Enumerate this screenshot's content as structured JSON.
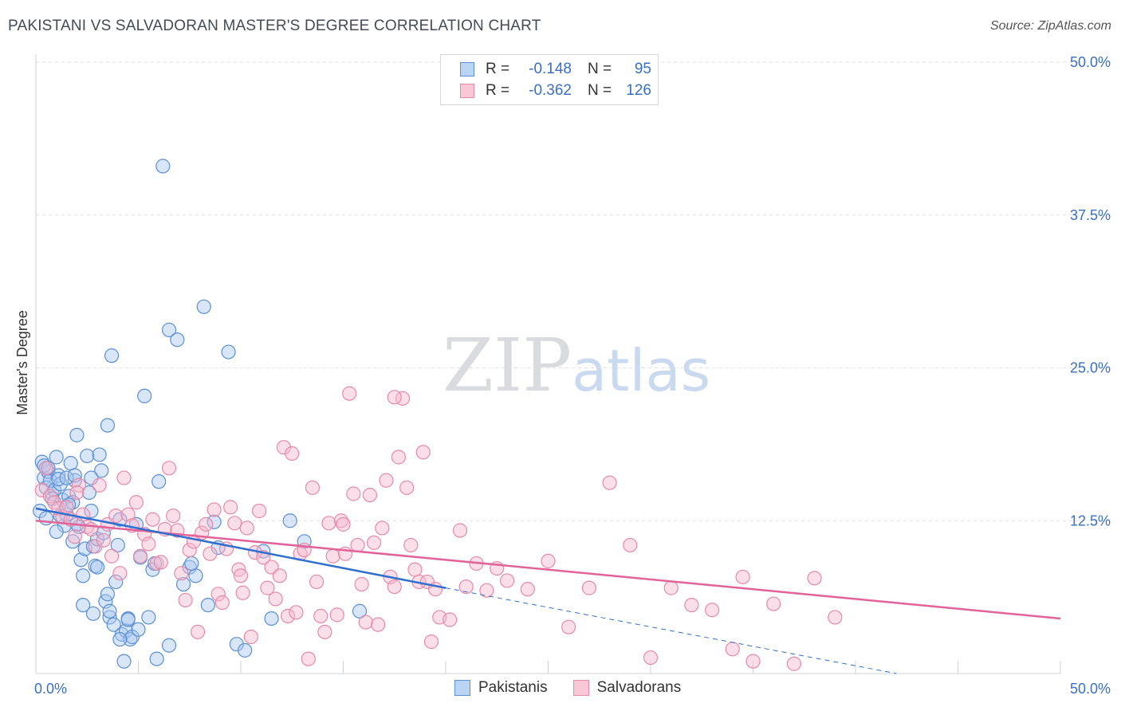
{
  "title": "PAKISTANI VS SALVADORAN MASTER'S DEGREE CORRELATION CHART",
  "source": "Source: ZipAtlas.com",
  "watermark": {
    "zip": "ZIP",
    "atlas": "atlas"
  },
  "legend": {
    "rows": [
      {
        "r_label": "R =",
        "r_value": "-0.148",
        "n_label": "N =",
        "n_value": "95"
      },
      {
        "r_label": "R =",
        "r_value": "-0.362",
        "n_label": "N =",
        "n_value": "126"
      }
    ]
  },
  "colors": {
    "pakistani_fill": "#a9c8f0",
    "pakistani_stroke": "#5b8fd6",
    "pakistani_line": "#2f6fd0",
    "salvadoran_fill": "#f6b8cb",
    "salvadoran_stroke": "#e68aa8",
    "salvadoran_line": "#e2639a",
    "tick": "#3a6fc5",
    "grid": "#dde0e4"
  },
  "chart_data": {
    "type": "scatter",
    "title": "PAKISTANI VS SALVADORAN MASTER'S DEGREE CORRELATION CHART",
    "xlabel": "",
    "ylabel": "Master's Degree",
    "xlim": [
      0,
      50
    ],
    "ylim": [
      0,
      50
    ],
    "x_tick_labels": [
      "0.0%",
      "50.0%"
    ],
    "y_ticks": [
      12.5,
      25.0,
      37.5,
      50.0
    ],
    "y_tick_labels": [
      "12.5%",
      "25.0%",
      "37.5%",
      "50.0%"
    ],
    "grid": true,
    "legend_position": "bottom",
    "series": [
      {
        "name": "Pakistanis",
        "r": -0.148,
        "n": 95,
        "trend": {
          "x0": 0.0,
          "y0": 13.5,
          "x1": 20.0,
          "y1": 7.0,
          "dashed_to_x": 42.0,
          "dashed_to_y": 0.0
        },
        "points": [
          [
            0.3,
            17.3
          ],
          [
            0.4,
            16.0
          ],
          [
            0.5,
            15.2
          ],
          [
            0.6,
            16.5
          ],
          [
            0.7,
            15.8
          ],
          [
            0.8,
            14.7
          ],
          [
            0.9,
            15.0
          ],
          [
            1.0,
            17.7
          ],
          [
            1.1,
            16.2
          ],
          [
            1.2,
            15.5
          ],
          [
            1.3,
            14.2
          ],
          [
            1.4,
            12.1
          ],
          [
            1.5,
            13.0
          ],
          [
            1.6,
            14.5
          ],
          [
            1.7,
            17.2
          ],
          [
            1.8,
            14.0
          ],
          [
            1.9,
            15.8
          ],
          [
            2.0,
            19.5
          ],
          [
            2.1,
            12.0
          ],
          [
            2.2,
            9.3
          ],
          [
            2.3,
            8.0
          ],
          [
            2.4,
            10.2
          ],
          [
            2.5,
            17.8
          ],
          [
            2.6,
            14.8
          ],
          [
            2.7,
            13.3
          ],
          [
            2.8,
            10.4
          ],
          [
            2.9,
            8.8
          ],
          [
            3.0,
            11.0
          ],
          [
            3.1,
            17.9
          ],
          [
            3.2,
            16.6
          ],
          [
            3.3,
            11.5
          ],
          [
            3.4,
            5.9
          ],
          [
            3.5,
            6.5
          ],
          [
            3.6,
            4.6
          ],
          [
            3.7,
            26.0
          ],
          [
            3.8,
            4.0
          ],
          [
            3.9,
            7.5
          ],
          [
            4.0,
            10.5
          ],
          [
            4.1,
            12.6
          ],
          [
            4.2,
            3.2
          ],
          [
            4.3,
            1.0
          ],
          [
            4.4,
            3.5
          ],
          [
            4.5,
            4.5
          ],
          [
            4.6,
            2.8
          ],
          [
            4.7,
            3.0
          ],
          [
            4.9,
            12.2
          ],
          [
            5.1,
            9.5
          ],
          [
            5.3,
            22.7
          ],
          [
            5.5,
            4.6
          ],
          [
            5.7,
            8.5
          ],
          [
            5.9,
            1.2
          ],
          [
            6.0,
            15.7
          ],
          [
            6.2,
            41.5
          ],
          [
            6.5,
            28.1
          ],
          [
            6.9,
            27.3
          ],
          [
            7.2,
            7.3
          ],
          [
            7.5,
            8.7
          ],
          [
            7.8,
            8.0
          ],
          [
            8.2,
            30.0
          ],
          [
            8.4,
            5.6
          ],
          [
            8.7,
            12.4
          ],
          [
            8.9,
            10.3
          ],
          [
            9.4,
            26.3
          ],
          [
            9.8,
            2.4
          ],
          [
            10.2,
            1.9
          ],
          [
            11.1,
            10.0
          ],
          [
            11.5,
            4.5
          ],
          [
            12.4,
            12.5
          ],
          [
            13.1,
            10.8
          ],
          [
            15.8,
            5.1
          ],
          [
            0.2,
            13.3
          ],
          [
            0.5,
            12.7
          ],
          [
            1.0,
            11.6
          ],
          [
            1.8,
            10.8
          ],
          [
            2.3,
            5.6
          ],
          [
            2.8,
            4.9
          ],
          [
            3.5,
            20.3
          ],
          [
            4.5,
            4.4
          ],
          [
            5.8,
            9.0
          ],
          [
            0.4,
            17.0
          ],
          [
            0.6,
            16.8
          ],
          [
            1.1,
            15.9
          ],
          [
            1.5,
            16.0
          ],
          [
            2.7,
            16.0
          ],
          [
            3.0,
            8.7
          ],
          [
            0.8,
            14.3
          ],
          [
            1.2,
            12.9
          ],
          [
            1.6,
            13.8
          ],
          [
            2.0,
            12.2
          ],
          [
            3.6,
            5.1
          ],
          [
            4.1,
            2.8
          ],
          [
            5.0,
            3.6
          ],
          [
            6.5,
            2.3
          ],
          [
            7.6,
            9.0
          ],
          [
            1.9,
            16.2
          ]
        ]
      },
      {
        "name": "Salvadorans",
        "r": -0.362,
        "n": 126,
        "trend": {
          "x0": 0.0,
          "y0": 12.5,
          "x1": 50.0,
          "y1": 4.5
        },
        "points": [
          [
            0.3,
            15.0
          ],
          [
            0.5,
            16.8
          ],
          [
            0.7,
            14.5
          ],
          [
            0.9,
            14.0
          ],
          [
            1.1,
            13.5
          ],
          [
            1.3,
            12.8
          ],
          [
            1.5,
            13.6
          ],
          [
            1.7,
            12.6
          ],
          [
            1.9,
            11.2
          ],
          [
            2.1,
            15.4
          ],
          [
            2.3,
            13.0
          ],
          [
            2.5,
            12.0
          ],
          [
            2.7,
            11.8
          ],
          [
            2.9,
            10.4
          ],
          [
            3.1,
            15.4
          ],
          [
            3.3,
            10.9
          ],
          [
            3.5,
            12.2
          ],
          [
            3.7,
            9.6
          ],
          [
            3.9,
            12.9
          ],
          [
            4.1,
            8.2
          ],
          [
            4.3,
            16.0
          ],
          [
            4.5,
            13.0
          ],
          [
            4.7,
            12.1
          ],
          [
            4.9,
            14.0
          ],
          [
            5.1,
            9.6
          ],
          [
            5.3,
            11.4
          ],
          [
            5.5,
            10.6
          ],
          [
            5.7,
            12.6
          ],
          [
            5.9,
            9.0
          ],
          [
            6.1,
            9.1
          ],
          [
            6.3,
            11.8
          ],
          [
            6.5,
            16.8
          ],
          [
            6.7,
            12.9
          ],
          [
            6.9,
            11.7
          ],
          [
            7.1,
            8.2
          ],
          [
            7.3,
            6.0
          ],
          [
            7.5,
            10.1
          ],
          [
            7.7,
            10.8
          ],
          [
            7.9,
            3.4
          ],
          [
            8.1,
            11.5
          ],
          [
            8.3,
            12.2
          ],
          [
            8.5,
            9.8
          ],
          [
            8.7,
            13.4
          ],
          [
            8.9,
            6.5
          ],
          [
            9.1,
            5.8
          ],
          [
            9.3,
            10.2
          ],
          [
            9.5,
            13.6
          ],
          [
            9.7,
            12.3
          ],
          [
            9.9,
            8.5
          ],
          [
            10.1,
            6.6
          ],
          [
            10.3,
            11.9
          ],
          [
            10.5,
            3.0
          ],
          [
            10.7,
            9.9
          ],
          [
            10.9,
            13.3
          ],
          [
            11.1,
            9.5
          ],
          [
            11.3,
            7.0
          ],
          [
            11.5,
            8.7
          ],
          [
            11.7,
            6.1
          ],
          [
            11.9,
            8.0
          ],
          [
            12.1,
            18.5
          ],
          [
            12.3,
            4.7
          ],
          [
            12.5,
            18.0
          ],
          [
            12.7,
            5.0
          ],
          [
            12.9,
            9.8
          ],
          [
            13.1,
            10.1
          ],
          [
            13.3,
            1.2
          ],
          [
            13.5,
            15.2
          ],
          [
            13.7,
            7.5
          ],
          [
            13.9,
            4.7
          ],
          [
            14.1,
            3.4
          ],
          [
            14.3,
            12.3
          ],
          [
            14.5,
            9.6
          ],
          [
            14.7,
            4.8
          ],
          [
            14.9,
            12.5
          ],
          [
            15.1,
            9.8
          ],
          [
            15.3,
            22.9
          ],
          [
            15.5,
            14.7
          ],
          [
            15.7,
            10.5
          ],
          [
            15.9,
            7.3
          ],
          [
            16.1,
            4.2
          ],
          [
            16.3,
            14.6
          ],
          [
            16.5,
            10.7
          ],
          [
            16.7,
            4.0
          ],
          [
            16.9,
            11.9
          ],
          [
            17.1,
            15.8
          ],
          [
            17.3,
            7.9
          ],
          [
            17.5,
            7.1
          ],
          [
            17.7,
            17.7
          ],
          [
            17.9,
            22.5
          ],
          [
            18.1,
            15.2
          ],
          [
            18.3,
            10.5
          ],
          [
            18.5,
            8.5
          ],
          [
            18.7,
            7.5
          ],
          [
            18.9,
            18.1
          ],
          [
            19.1,
            7.5
          ],
          [
            19.3,
            2.6
          ],
          [
            19.5,
            6.9
          ],
          [
            19.7,
            4.6
          ],
          [
            20.2,
            4.4
          ],
          [
            20.7,
            11.7
          ],
          [
            21.0,
            7.1
          ],
          [
            21.5,
            9.0
          ],
          [
            22.0,
            6.8
          ],
          [
            22.5,
            8.6
          ],
          [
            23.0,
            7.6
          ],
          [
            24.0,
            6.9
          ],
          [
            25.0,
            9.2
          ],
          [
            26.0,
            3.8
          ],
          [
            27.0,
            7.0
          ],
          [
            28.0,
            15.6
          ],
          [
            29.0,
            10.5
          ],
          [
            30.0,
            1.3
          ],
          [
            31.0,
            7.0
          ],
          [
            32.0,
            5.6
          ],
          [
            33.0,
            5.2
          ],
          [
            34.0,
            2.0
          ],
          [
            34.5,
            7.9
          ],
          [
            35.0,
            1.0
          ],
          [
            36.0,
            5.7
          ],
          [
            37.0,
            0.8
          ],
          [
            38.0,
            7.8
          ],
          [
            39.0,
            4.6
          ],
          [
            17.5,
            22.6
          ],
          [
            15.0,
            12.2
          ],
          [
            10.0,
            8.0
          ],
          [
            2.0,
            14.8
          ]
        ]
      }
    ]
  },
  "bottom_legend": {
    "items": [
      "Pakistanis",
      "Salvadorans"
    ]
  }
}
